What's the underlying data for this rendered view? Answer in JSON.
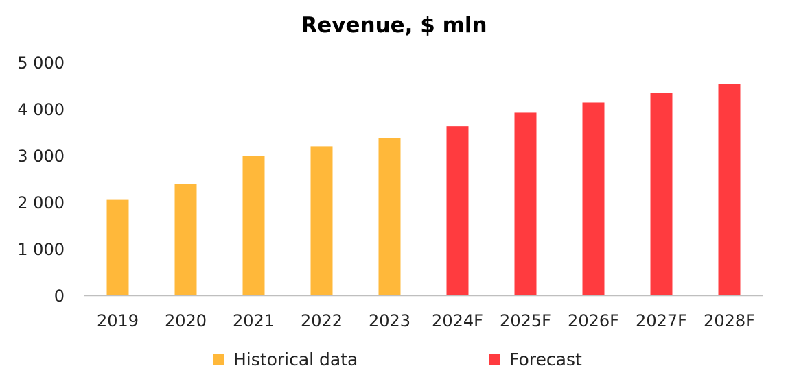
{
  "chart_data": {
    "type": "bar",
    "title": "Revenue, $ mln",
    "xlabel": "",
    "ylabel": "",
    "categories": [
      "2019",
      "2020",
      "2021",
      "2022",
      "2023",
      "2024F",
      "2025F",
      "2026F",
      "2027F",
      "2028F"
    ],
    "series": [
      {
        "name": "Historical data",
        "color": "#FFB83A",
        "values": [
          2050,
          2390,
          2990,
          3200,
          3370,
          null,
          null,
          null,
          null,
          null
        ]
      },
      {
        "name": "Forecast",
        "color": "#FF3B3F",
        "values": [
          null,
          null,
          null,
          null,
          null,
          3630,
          3920,
          4140,
          4350,
          4540
        ]
      }
    ],
    "ylim": [
      0,
      5000
    ],
    "yticks": [
      0,
      1000,
      2000,
      3000,
      4000,
      5000
    ],
    "ytick_labels": [
      "0",
      "1 000",
      "2 000",
      "3 000",
      "4 000",
      "5 000"
    ],
    "grid": false,
    "legend_position": "bottom"
  }
}
